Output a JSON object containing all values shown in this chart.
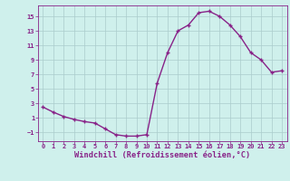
{
  "x": [
    0,
    1,
    2,
    3,
    4,
    5,
    6,
    7,
    8,
    9,
    10,
    11,
    12,
    13,
    14,
    15,
    16,
    17,
    18,
    19,
    20,
    21,
    22,
    23
  ],
  "y": [
    2.5,
    1.8,
    1.2,
    0.8,
    0.5,
    0.3,
    -0.5,
    -1.3,
    -1.5,
    -1.5,
    -1.3,
    5.8,
    10.0,
    13.0,
    13.8,
    15.5,
    15.7,
    15.0,
    13.8,
    12.2,
    10.0,
    9.0,
    7.3,
    7.5
  ],
  "line_color": "#882288",
  "marker": "+",
  "marker_size": 3,
  "bg_color": "#cff0ec",
  "grid_color": "#aacccc",
  "xlabel": "Windchill (Refroidissement éolien,°C)",
  "xlim": [
    -0.5,
    23.5
  ],
  "ylim": [
    -2.2,
    16.5
  ],
  "yticks": [
    -1,
    1,
    3,
    5,
    7,
    9,
    11,
    13,
    15
  ],
  "xticks": [
    0,
    1,
    2,
    3,
    4,
    5,
    6,
    7,
    8,
    9,
    10,
    11,
    12,
    13,
    14,
    15,
    16,
    17,
    18,
    19,
    20,
    21,
    22,
    23
  ],
  "tick_color": "#882288",
  "label_color": "#882288",
  "spine_color": "#882288",
  "tick_fontsize": 5.0,
  "xlabel_fontsize": 6.2,
  "linewidth": 1.0,
  "markeredgewidth": 1.0
}
